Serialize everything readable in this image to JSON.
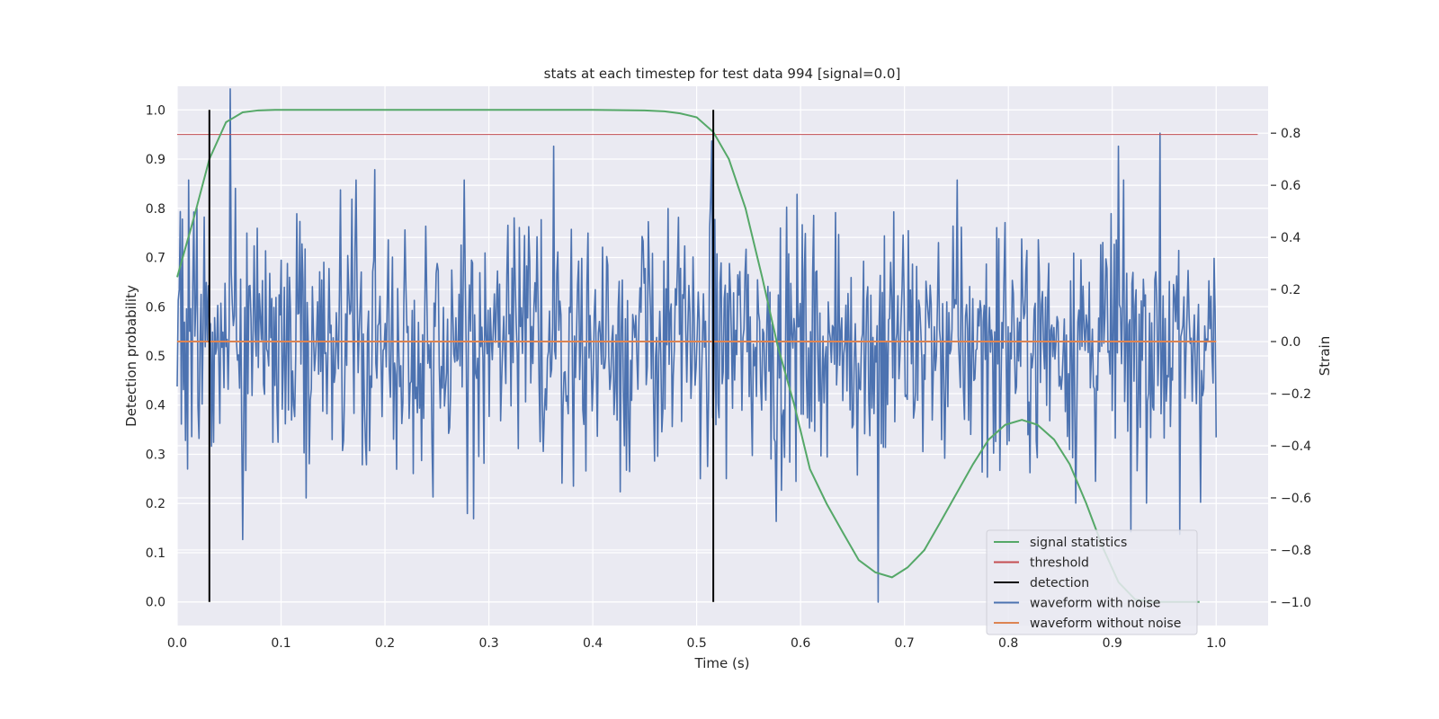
{
  "chart_data": {
    "type": "line",
    "title": "stats at each timestep for test data 994 [signal=0.0]",
    "xlabel": "Time (s)",
    "ylabel_left": "Detection probability",
    "ylabel_right": "Strain",
    "xlim": [
      0.0,
      1.05
    ],
    "ylim_left": [
      -0.048,
      1.048
    ],
    "ylim_right": [
      -1.09,
      0.98
    ],
    "x_ticks": [
      0.0,
      0.1,
      0.2,
      0.3,
      0.4,
      0.5,
      0.6,
      0.7,
      0.8,
      0.9,
      1.0
    ],
    "x_tick_labels": [
      "0.0",
      "0.1",
      "0.2",
      "0.3",
      "0.4",
      "0.5",
      "0.6",
      "0.7",
      "0.8",
      "0.9",
      "1.0"
    ],
    "y_left_ticks": [
      0.0,
      0.1,
      0.2,
      0.3,
      0.4,
      0.5,
      0.6,
      0.7,
      0.8,
      0.9,
      1.0
    ],
    "y_left_tick_labels": [
      "0.0",
      "0.1",
      "0.2",
      "0.3",
      "0.4",
      "0.5",
      "0.6",
      "0.7",
      "0.8",
      "0.9",
      "1.0"
    ],
    "y_right_ticks": [
      -1.0,
      -0.8,
      -0.6,
      -0.4,
      -0.2,
      0.0,
      0.2,
      0.4,
      0.6,
      0.8
    ],
    "y_right_tick_labels": [
      "−1.0",
      "−0.8",
      "−0.6",
      "−0.4",
      "−0.2",
      "0.0",
      "0.2",
      "0.4",
      "0.6",
      "0.8"
    ],
    "grid": true,
    "legend_position": "bottom-right",
    "colors": {
      "background": "#eaeaf2",
      "grid": "#ffffff",
      "signal_statistics": "#55a868",
      "threshold": "#c44e52",
      "detection": "#000000",
      "waveform_with_noise": "#4c72b0",
      "waveform_without_noise": "#dd8452"
    },
    "signal_statistics": {
      "name": "signal statistics",
      "axis": "left",
      "x": [
        0.0,
        0.016,
        0.031,
        0.047,
        0.063,
        0.078,
        0.094,
        0.2,
        0.3,
        0.4,
        0.45,
        0.469,
        0.484,
        0.5,
        0.516,
        0.531,
        0.547,
        0.563,
        0.578,
        0.594,
        0.609,
        0.625,
        0.641,
        0.656,
        0.672,
        0.688,
        0.703,
        0.719,
        0.734,
        0.75,
        0.766,
        0.781,
        0.797,
        0.813,
        0.828,
        0.844,
        0.859,
        0.875,
        0.891,
        0.906,
        0.922,
        0.938,
        0.953,
        0.969,
        0.984
      ],
      "y": [
        0.66,
        0.78,
        0.9,
        0.975,
        0.995,
        0.999,
        1.0,
        1.0,
        1.0,
        1.0,
        0.999,
        0.997,
        0.993,
        0.985,
        0.955,
        0.9,
        0.8,
        0.66,
        0.52,
        0.4,
        0.27,
        0.2,
        0.14,
        0.085,
        0.06,
        0.05,
        0.07,
        0.105,
        0.16,
        0.22,
        0.28,
        0.33,
        0.36,
        0.37,
        0.36,
        0.33,
        0.28,
        0.2,
        0.11,
        0.04,
        0.005,
        0.0,
        0.0,
        0.0,
        0.0
      ]
    },
    "threshold": {
      "name": "threshold",
      "axis": "left",
      "value": 0.95,
      "x_range": [
        0.0,
        1.04
      ]
    },
    "detection": {
      "name": "detection",
      "axis": "left",
      "x": [
        0.031,
        0.516
      ],
      "y_range": [
        0.0,
        1.0
      ]
    },
    "waveform_with_noise": {
      "name": "waveform with noise",
      "axis": "right",
      "x_range": [
        0.0,
        1.0
      ],
      "n_points": 1000,
      "spread": 0.25,
      "peaks": [
        {
          "x": 0.051,
          "y": 0.97
        },
        {
          "x": 0.063,
          "y": -0.76
        },
        {
          "x": 0.16,
          "y": -0.38
        },
        {
          "x": 0.19,
          "y": 0.66
        },
        {
          "x": 0.124,
          "y": -0.6
        },
        {
          "x": 0.279,
          "y": -0.66
        },
        {
          "x": 0.285,
          "y": -0.68
        },
        {
          "x": 0.362,
          "y": 0.75
        },
        {
          "x": 0.515,
          "y": 0.77
        },
        {
          "x": 0.577,
          "y": -0.69
        },
        {
          "x": 0.675,
          "y": -1.0
        },
        {
          "x": 0.906,
          "y": 0.75
        },
        {
          "x": 0.918,
          "y": -0.73
        },
        {
          "x": 0.946,
          "y": 0.8
        },
        {
          "x": 0.965,
          "y": -0.74
        }
      ]
    },
    "waveform_without_noise": {
      "name": "waveform without noise",
      "axis": "right",
      "x_range": [
        0.0,
        1.0
      ],
      "value": 0.0
    },
    "legend": [
      {
        "label": "signal statistics",
        "color": "#55a868"
      },
      {
        "label": "threshold",
        "color": "#c44e52"
      },
      {
        "label": "detection",
        "color": "#000000"
      },
      {
        "label": "waveform with noise",
        "color": "#4c72b0"
      },
      {
        "label": "waveform without noise",
        "color": "#dd8452"
      }
    ]
  }
}
